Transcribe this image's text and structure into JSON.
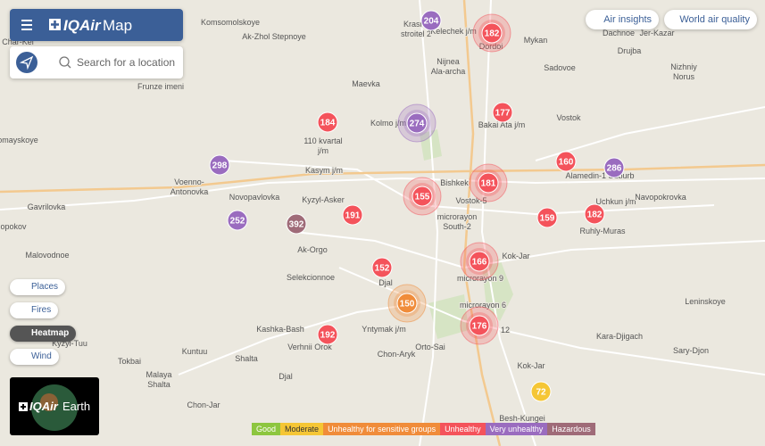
{
  "header": {
    "logo": "IQAir",
    "title": "Map"
  },
  "search": {
    "placeholder": "Search for a location"
  },
  "top_buttons": [
    "Air insights",
    "World air quality"
  ],
  "layers": [
    {
      "label": "Places",
      "active": false
    },
    {
      "label": "Fires",
      "active": false
    },
    {
      "label": "Heatmap",
      "active": true
    },
    {
      "label": "Wind",
      "active": false
    }
  ],
  "earth": {
    "logo": "IQAir",
    "title": "Earth"
  },
  "places": [
    [
      "Komsomolskoye"
    ],
    [
      "Ak-Zhol Stepnoye"
    ],
    [
      "Krasny",
      "stroitel 2"
    ],
    [
      "Kelechek j/m"
    ],
    [
      "Dordoi"
    ],
    [
      "Mykan"
    ],
    [
      "Dachnoe"
    ],
    [
      "Jer-Kazar"
    ],
    [
      "Drujba"
    ],
    [
      "Nizhniy",
      "Norus"
    ],
    [
      "Sadovoe"
    ],
    [
      "Nijnea",
      "Ala-archa"
    ],
    [
      "Char-Kel"
    ],
    [
      "Maevka"
    ],
    [
      "Frunze imeni"
    ],
    [
      "Bakai Ata j/m"
    ],
    [
      "Vostok"
    ],
    [
      "Kolmo j/m"
    ],
    [
      "110 kvartal",
      "j/m"
    ],
    [
      "omayskoye"
    ],
    [
      "Kasym j/m"
    ],
    [
      "Alamedin-1 Suburb"
    ],
    [
      "Bishkek"
    ],
    [
      "Voenno-",
      "Antonovka"
    ],
    [
      "Novopavlovka"
    ],
    [
      "Kyzyl-Asker"
    ],
    [
      "Vostok-5"
    ],
    [
      "Uchkun j/m"
    ],
    [
      "Navopokrovka"
    ],
    [
      "Gavrilovka"
    ],
    [
      "opokov"
    ],
    [
      "microrayon",
      "South-2"
    ],
    [
      "Ruhly-Muras"
    ],
    [
      "Malovodnoe"
    ],
    [
      "Ak-Orgo"
    ],
    [
      "Kok-Jar"
    ],
    [
      "Selekcionnoe"
    ],
    [
      "Djal"
    ],
    [
      "microrayon 9"
    ],
    [
      "microrayon 6"
    ],
    [
      "12"
    ],
    [
      "Leninskoye"
    ],
    [
      "Kashka-Bash"
    ],
    [
      "Yntymak j/m"
    ],
    [
      "Orto-Sai"
    ],
    [
      "Kara-Djigach"
    ],
    [
      "Kyzyl-Tuu"
    ],
    [
      "Verhnii Orok"
    ],
    [
      "Kuntuu"
    ],
    [
      "Chon-Aryk"
    ],
    [
      "Sary-Djon"
    ],
    [
      "Tokbai"
    ],
    [
      "Shalta"
    ],
    [
      "Malaya",
      "Shalta"
    ],
    [
      "Djal"
    ],
    [
      "Kok-Jar"
    ],
    [
      "Chon-Jar"
    ],
    [
      "Besh-Kungei"
    ]
  ],
  "markers": [
    {
      "value": 204,
      "color": "#9a6cbf",
      "cluster": false
    },
    {
      "value": 182,
      "color": "#f4535b",
      "cluster": true
    },
    {
      "value": 184,
      "color": "#f4535b",
      "cluster": false
    },
    {
      "value": 274,
      "color": "#9a6cbf",
      "cluster": true
    },
    {
      "value": 177,
      "color": "#f4535b",
      "cluster": false
    },
    {
      "value": 298,
      "color": "#9a6cbf",
      "cluster": false
    },
    {
      "value": 160,
      "color": "#f4535b",
      "cluster": false
    },
    {
      "value": 286,
      "color": "#9a6cbf",
      "cluster": false
    },
    {
      "value": 181,
      "color": "#f4535b",
      "cluster": true
    },
    {
      "value": 155,
      "color": "#f4535b",
      "cluster": true
    },
    {
      "value": 191,
      "color": "#f4535b",
      "cluster": false
    },
    {
      "value": 392,
      "color": "#9f6b78",
      "cluster": false
    },
    {
      "value": 252,
      "color": "#9a6cbf",
      "cluster": false
    },
    {
      "value": 159,
      "color": "#f4535b",
      "cluster": false
    },
    {
      "value": 182,
      "color": "#f4535b",
      "cluster": false
    },
    {
      "value": 166,
      "color": "#f4535b",
      "cluster": true
    },
    {
      "value": 152,
      "color": "#f4535b",
      "cluster": false
    },
    {
      "value": 150,
      "color": "#f08c3a",
      "cluster": true
    },
    {
      "value": 176,
      "color": "#f4535b",
      "cluster": true
    },
    {
      "value": 192,
      "color": "#f4535b",
      "cluster": false
    },
    {
      "value": 72,
      "color": "#f5c635",
      "cluster": false
    }
  ],
  "legend": [
    {
      "label": "Good",
      "color": "#8dc63f"
    },
    {
      "label": "Moderate",
      "color": "#f5c635"
    },
    {
      "label": "Unhealthy for sensitive groups",
      "color": "#f08c3a"
    },
    {
      "label": "Unhealthy",
      "color": "#f4535b"
    },
    {
      "label": "Very unhealthy",
      "color": "#9a6cbf"
    },
    {
      "label": "Hazardous",
      "color": "#9f6b78"
    }
  ]
}
